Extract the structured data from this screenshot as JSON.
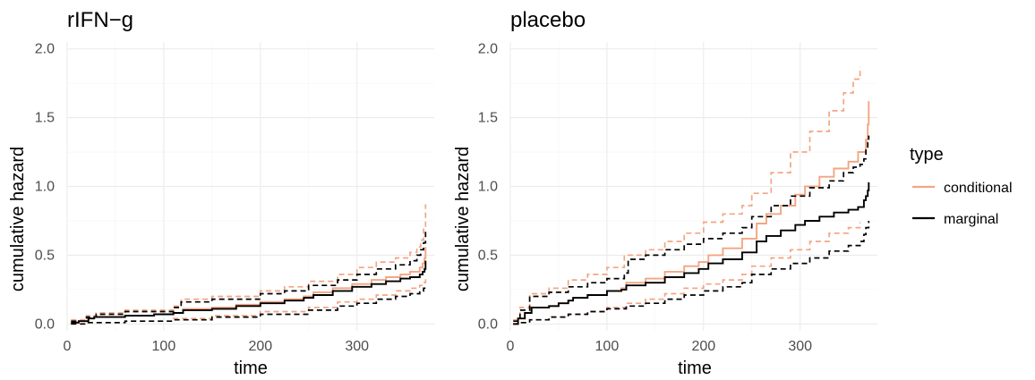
{
  "chart_data": [
    {
      "type": "line",
      "title": "rIFN−g",
      "xlabel": "time",
      "ylabel": "cumulative hazard",
      "xlim": [
        0,
        380
      ],
      "ylim": [
        -0.05,
        2.05
      ],
      "xticks": [
        0,
        100,
        200,
        300
      ],
      "xtick_labels": [
        "0",
        "100",
        "200",
        "300"
      ],
      "yticks": [
        0,
        0.5,
        1,
        1.5,
        2
      ],
      "ytick_labels": [
        "0.0",
        "0.5",
        "1.0",
        "1.5",
        "2.0"
      ],
      "grid": true,
      "series": [
        {
          "type": "conditional",
          "band": "estimate",
          "color": "#F4A582",
          "dash": false,
          "x": [
            4,
            12,
            22,
            28,
            60,
            90,
            110,
            120,
            150,
            175,
            200,
            225,
            245,
            255,
            275,
            295,
            315,
            330,
            345,
            355,
            365,
            368,
            370,
            371
          ],
          "y": [
            0.01,
            0.02,
            0.04,
            0.05,
            0.06,
            0.07,
            0.08,
            0.11,
            0.12,
            0.14,
            0.16,
            0.18,
            0.2,
            0.23,
            0.26,
            0.29,
            0.32,
            0.34,
            0.36,
            0.38,
            0.41,
            0.44,
            0.48,
            0.56
          ]
        },
        {
          "type": "conditional",
          "band": "upper",
          "color": "#F4A582",
          "dash": true,
          "x": [
            4,
            20,
            30,
            60,
            110,
            118,
            150,
            200,
            225,
            250,
            280,
            300,
            320,
            340,
            355,
            362,
            366,
            369,
            371
          ],
          "y": [
            0.03,
            0.06,
            0.08,
            0.1,
            0.13,
            0.18,
            0.2,
            0.24,
            0.27,
            0.31,
            0.36,
            0.41,
            0.45,
            0.48,
            0.52,
            0.56,
            0.61,
            0.7,
            0.87
          ]
        },
        {
          "type": "conditional",
          "band": "lower",
          "color": "#F4A582",
          "dash": true,
          "x": [
            4,
            20,
            60,
            110,
            150,
            200,
            250,
            280,
            300,
            320,
            340,
            355,
            365,
            369,
            371
          ],
          "y": [
            0.0,
            0.01,
            0.02,
            0.04,
            0.06,
            0.09,
            0.12,
            0.16,
            0.18,
            0.21,
            0.24,
            0.26,
            0.28,
            0.3,
            0.33
          ]
        },
        {
          "type": "marginal",
          "band": "estimate",
          "color": "#000000",
          "dash": false,
          "x": [
            4,
            12,
            22,
            28,
            60,
            90,
            110,
            120,
            150,
            175,
            200,
            225,
            245,
            255,
            275,
            295,
            315,
            330,
            345,
            355,
            365,
            368,
            370,
            371
          ],
          "y": [
            0.01,
            0.02,
            0.04,
            0.05,
            0.06,
            0.07,
            0.08,
            0.1,
            0.11,
            0.13,
            0.15,
            0.17,
            0.19,
            0.21,
            0.24,
            0.27,
            0.29,
            0.31,
            0.33,
            0.34,
            0.36,
            0.38,
            0.4,
            0.46
          ]
        },
        {
          "type": "marginal",
          "band": "upper",
          "color": "#000000",
          "dash": true,
          "x": [
            4,
            20,
            30,
            60,
            110,
            118,
            150,
            200,
            225,
            250,
            280,
            300,
            320,
            340,
            355,
            362,
            366,
            369,
            371
          ],
          "y": [
            0.02,
            0.05,
            0.07,
            0.09,
            0.12,
            0.16,
            0.18,
            0.22,
            0.24,
            0.28,
            0.32,
            0.36,
            0.4,
            0.43,
            0.46,
            0.5,
            0.54,
            0.59,
            0.67
          ]
        },
        {
          "type": "marginal",
          "band": "lower",
          "color": "#000000",
          "dash": true,
          "x": [
            4,
            20,
            60,
            110,
            150,
            200,
            250,
            280,
            300,
            320,
            340,
            355,
            365,
            369,
            371
          ],
          "y": [
            0.0,
            0.01,
            0.02,
            0.03,
            0.05,
            0.07,
            0.1,
            0.13,
            0.15,
            0.18,
            0.2,
            0.22,
            0.24,
            0.26,
            0.28
          ]
        }
      ]
    },
    {
      "type": "line",
      "title": "placebo",
      "xlabel": "time",
      "ylabel": "cumulative hazard",
      "xlim": [
        0,
        380
      ],
      "ylim": [
        -0.05,
        2.05
      ],
      "xticks": [
        0,
        100,
        200,
        300
      ],
      "xtick_labels": [
        "0",
        "100",
        "200",
        "300"
      ],
      "yticks": [
        0,
        0.5,
        1,
        1.5,
        2
      ],
      "ytick_labels": [
        "0.0",
        "0.5",
        "1.0",
        "1.5",
        "2.0"
      ],
      "grid": true,
      "series": [
        {
          "type": "conditional",
          "band": "estimate",
          "color": "#F4A582",
          "dash": false,
          "x": [
            3,
            8,
            15,
            22,
            40,
            50,
            60,
            65,
            80,
            100,
            115,
            120,
            140,
            160,
            180,
            195,
            205,
            220,
            240,
            255,
            265,
            280,
            295,
            305,
            320,
            335,
            350,
            360,
            366,
            368,
            370,
            371
          ],
          "y": [
            0.0,
            0.04,
            0.08,
            0.12,
            0.13,
            0.15,
            0.17,
            0.19,
            0.21,
            0.24,
            0.26,
            0.3,
            0.33,
            0.38,
            0.42,
            0.45,
            0.5,
            0.55,
            0.62,
            0.73,
            0.8,
            0.86,
            0.94,
            1.0,
            1.07,
            1.13,
            1.18,
            1.25,
            1.25,
            1.34,
            1.45,
            1.62
          ]
        },
        {
          "type": "conditional",
          "band": "upper",
          "color": "#F4A582",
          "dash": true,
          "x": [
            3,
            10,
            20,
            40,
            60,
            80,
            100,
            118,
            140,
            160,
            180,
            200,
            220,
            240,
            250,
            270,
            290,
            310,
            330,
            345,
            355,
            362
          ],
          "y": [
            0.03,
            0.12,
            0.22,
            0.26,
            0.32,
            0.36,
            0.41,
            0.5,
            0.54,
            0.6,
            0.66,
            0.74,
            0.8,
            0.86,
            0.95,
            1.1,
            1.25,
            1.4,
            1.55,
            1.68,
            1.78,
            1.87
          ]
        },
        {
          "type": "conditional",
          "band": "lower",
          "color": "#F4A582",
          "dash": true,
          "x": [
            3,
            10,
            20,
            40,
            60,
            80,
            100,
            120,
            140,
            160,
            180,
            200,
            220,
            240,
            250,
            270,
            290,
            310,
            330,
            350,
            362
          ],
          "y": [
            0.0,
            0.01,
            0.03,
            0.05,
            0.07,
            0.09,
            0.12,
            0.15,
            0.18,
            0.22,
            0.26,
            0.29,
            0.32,
            0.36,
            0.42,
            0.48,
            0.54,
            0.6,
            0.66,
            0.7,
            0.74
          ]
        },
        {
          "type": "marginal",
          "band": "estimate",
          "color": "#000000",
          "dash": false,
          "x": [
            3,
            8,
            15,
            22,
            40,
            50,
            60,
            65,
            80,
            100,
            115,
            120,
            140,
            160,
            180,
            195,
            205,
            220,
            240,
            255,
            265,
            280,
            295,
            305,
            320,
            335,
            350,
            360,
            366,
            368,
            370,
            371
          ],
          "y": [
            0.0,
            0.04,
            0.08,
            0.12,
            0.13,
            0.15,
            0.17,
            0.19,
            0.21,
            0.24,
            0.25,
            0.28,
            0.3,
            0.34,
            0.37,
            0.4,
            0.44,
            0.47,
            0.52,
            0.6,
            0.64,
            0.68,
            0.72,
            0.75,
            0.78,
            0.81,
            0.83,
            0.85,
            0.9,
            0.93,
            0.97,
            1.03
          ]
        },
        {
          "type": "marginal",
          "band": "upper",
          "color": "#000000",
          "dash": true,
          "x": [
            3,
            10,
            20,
            40,
            60,
            80,
            100,
            118,
            122,
            140,
            160,
            180,
            200,
            220,
            240,
            250,
            270,
            290,
            310,
            330,
            345,
            355,
            362,
            366,
            368,
            370,
            371
          ],
          "y": [
            0.02,
            0.1,
            0.2,
            0.23,
            0.27,
            0.3,
            0.33,
            0.37,
            0.47,
            0.5,
            0.54,
            0.58,
            0.62,
            0.66,
            0.7,
            0.78,
            0.86,
            0.93,
            0.99,
            1.04,
            1.1,
            1.14,
            1.16,
            1.2,
            1.27,
            1.32,
            1.37
          ]
        },
        {
          "type": "marginal",
          "band": "lower",
          "color": "#000000",
          "dash": true,
          "x": [
            3,
            10,
            20,
            40,
            60,
            80,
            100,
            120,
            140,
            160,
            180,
            200,
            220,
            240,
            250,
            270,
            290,
            310,
            330,
            350,
            362,
            366,
            368,
            371
          ],
          "y": [
            0.0,
            0.01,
            0.03,
            0.05,
            0.07,
            0.09,
            0.11,
            0.13,
            0.15,
            0.18,
            0.21,
            0.24,
            0.27,
            0.3,
            0.36,
            0.4,
            0.44,
            0.48,
            0.53,
            0.57,
            0.6,
            0.65,
            0.7,
            0.75
          ]
        }
      ]
    }
  ],
  "legend": {
    "title": "type",
    "placement": "right",
    "items": [
      {
        "label": "conditional",
        "color": "#F4A582"
      },
      {
        "label": "marginal",
        "color": "#000000"
      }
    ]
  }
}
